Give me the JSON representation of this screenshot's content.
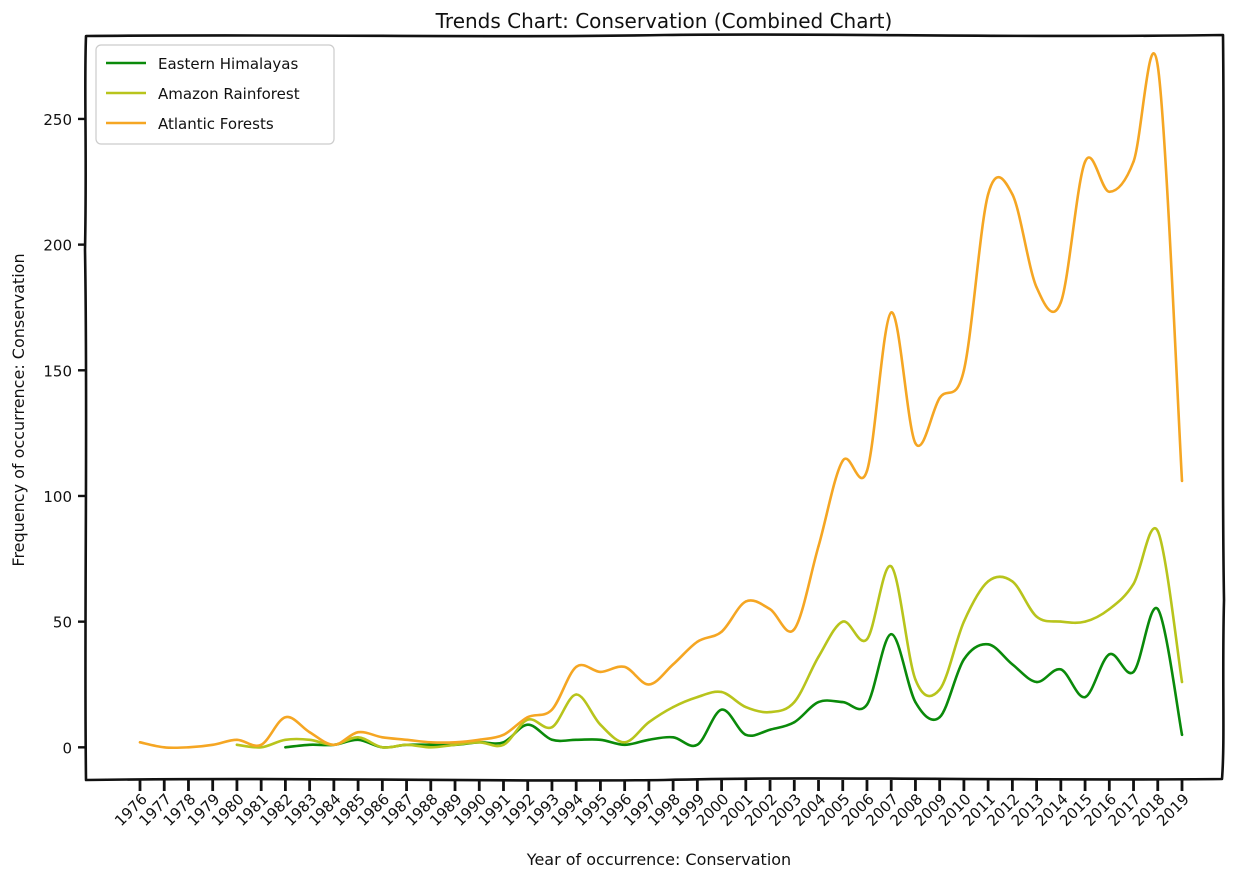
{
  "chart_data": {
    "type": "line",
    "title": "Trends Chart: Conservation (Combined Chart)",
    "xlabel": "Year of occurrence: Conservation",
    "ylabel": "Frequency of occurrence: Conservation",
    "x": [
      "1976",
      "1977",
      "1978",
      "1979",
      "1980",
      "1981",
      "1982",
      "1983",
      "1984",
      "1985",
      "1986",
      "1987",
      "1988",
      "1989",
      "1990",
      "1991",
      "1992",
      "1993",
      "1994",
      "1995",
      "1996",
      "1997",
      "1998",
      "1999",
      "2000",
      "2001",
      "2002",
      "2003",
      "2004",
      "2005",
      "2006",
      "2007",
      "2008",
      "2009",
      "2010",
      "2011",
      "2012",
      "2013",
      "2014",
      "2015",
      "2016",
      "2017",
      "2018",
      "2019"
    ],
    "yticks": [
      0,
      50,
      100,
      150,
      200,
      250
    ],
    "ylim": [
      -13,
      283
    ],
    "grid": false,
    "legend_position": "top-left",
    "series": [
      {
        "name": "Eastern Himalayas",
        "color": "#0a8a0a",
        "values": [
          null,
          null,
          null,
          null,
          null,
          null,
          0,
          1,
          1,
          3,
          0,
          1,
          1,
          1,
          2,
          2,
          9,
          3,
          3,
          3,
          1,
          3,
          4,
          1,
          15,
          5,
          7,
          10,
          18,
          18,
          17,
          45,
          18,
          12,
          35,
          41,
          33,
          26,
          31,
          20,
          37,
          30,
          55,
          5
        ]
      },
      {
        "name": "Amazon Rainforest",
        "color": "#b8c41c",
        "values": [
          null,
          null,
          null,
          null,
          1,
          0,
          3,
          3,
          1,
          4,
          0,
          1,
          0,
          1,
          2,
          1,
          11,
          8,
          21,
          9,
          2,
          10,
          16,
          20,
          22,
          16,
          14,
          18,
          36,
          50,
          43,
          72,
          27,
          23,
          50,
          66,
          66,
          52,
          50,
          50,
          55,
          65,
          86,
          26
        ]
      },
      {
        "name": "Atlantic Forests",
        "color": "#f5a623",
        "values": [
          2,
          0,
          0,
          1,
          3,
          1,
          12,
          6,
          1,
          6,
          4,
          3,
          2,
          2,
          3,
          5,
          12,
          15,
          32,
          30,
          32,
          25,
          33,
          42,
          46,
          58,
          55,
          47,
          80,
          114,
          110,
          173,
          121,
          139,
          150,
          220,
          220,
          183,
          177,
          233,
          221,
          233,
          271,
          106
        ]
      }
    ]
  }
}
